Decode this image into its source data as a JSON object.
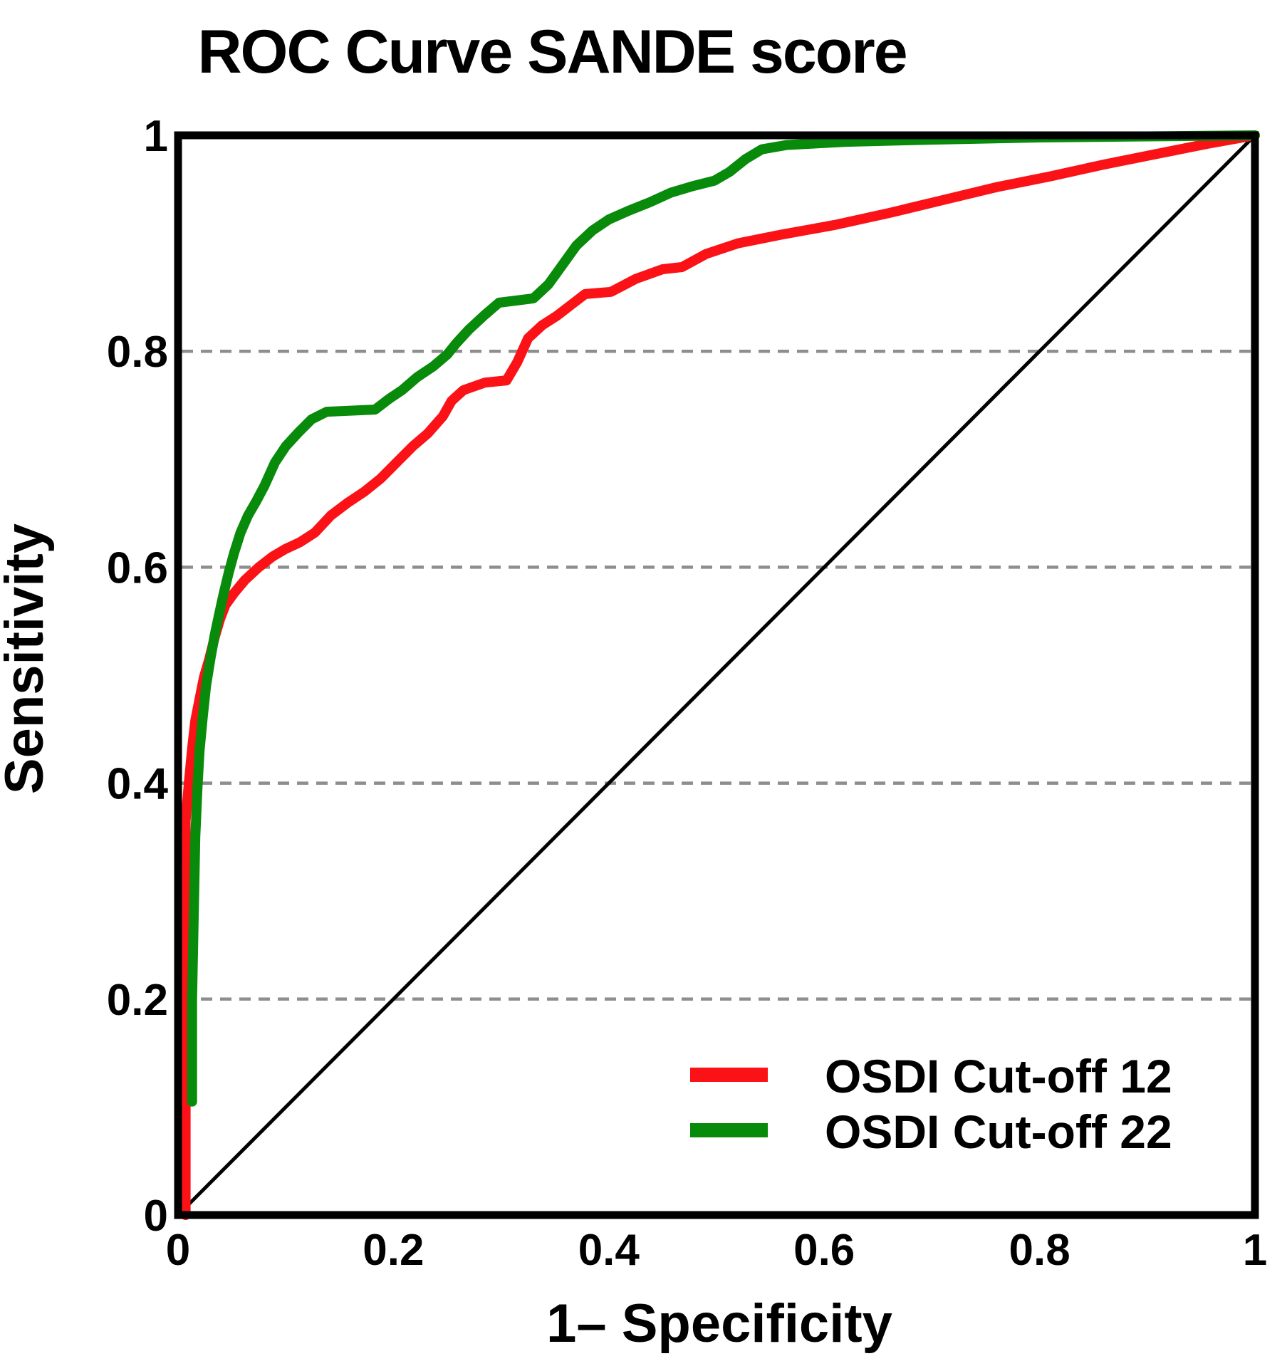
{
  "chart_data": {
    "type": "line",
    "title": "ROC Curve SANDE score",
    "xlabel": "1– Specificity",
    "ylabel": "Sensitivity",
    "xlim": [
      0,
      1
    ],
    "ylim": [
      0,
      1
    ],
    "grid": "horizontal-dashed",
    "grid_color": "#8e8e8e",
    "frame_color": "#000000",
    "diagonal_reference": true,
    "legend_position": "lower right",
    "x_ticks": [
      {
        "v": 0,
        "label": "0"
      },
      {
        "v": 0.2,
        "label": "0.2"
      },
      {
        "v": 0.4,
        "label": "0.4"
      },
      {
        "v": 0.6,
        "label": "0.6"
      },
      {
        "v": 0.8,
        "label": "0.8"
      },
      {
        "v": 1,
        "label": "1"
      }
    ],
    "y_ticks": [
      {
        "v": 0,
        "label": "0"
      },
      {
        "v": 0.2,
        "label": "0.2"
      },
      {
        "v": 0.4,
        "label": "0.4"
      },
      {
        "v": 0.6,
        "label": "0.6"
      },
      {
        "v": 0.8,
        "label": "0.8"
      },
      {
        "v": 1,
        "label": "1"
      }
    ],
    "y_gridlines": [
      0.2,
      0.4,
      0.6,
      0.8
    ],
    "series": [
      {
        "name": "OSDI Cut-off 12",
        "color": "#fb1217",
        "points": [
          [
            0.007,
            0.0
          ],
          [
            0.007,
            0.365
          ],
          [
            0.01,
            0.4
          ],
          [
            0.013,
            0.432
          ],
          [
            0.016,
            0.458
          ],
          [
            0.02,
            0.478
          ],
          [
            0.024,
            0.498
          ],
          [
            0.029,
            0.515
          ],
          [
            0.034,
            0.535
          ],
          [
            0.039,
            0.552
          ],
          [
            0.044,
            0.565
          ],
          [
            0.052,
            0.576
          ],
          [
            0.062,
            0.588
          ],
          [
            0.075,
            0.6
          ],
          [
            0.088,
            0.61
          ],
          [
            0.1,
            0.617
          ],
          [
            0.113,
            0.623
          ],
          [
            0.127,
            0.632
          ],
          [
            0.142,
            0.648
          ],
          [
            0.158,
            0.66
          ],
          [
            0.173,
            0.67
          ],
          [
            0.188,
            0.682
          ],
          [
            0.203,
            0.697
          ],
          [
            0.218,
            0.712
          ],
          [
            0.232,
            0.724
          ],
          [
            0.246,
            0.74
          ],
          [
            0.254,
            0.754
          ],
          [
            0.265,
            0.764
          ],
          [
            0.285,
            0.771
          ],
          [
            0.305,
            0.773
          ],
          [
            0.315,
            0.79
          ],
          [
            0.325,
            0.812
          ],
          [
            0.338,
            0.824
          ],
          [
            0.352,
            0.833
          ],
          [
            0.365,
            0.843
          ],
          [
            0.378,
            0.853
          ],
          [
            0.402,
            0.855
          ],
          [
            0.425,
            0.867
          ],
          [
            0.45,
            0.876
          ],
          [
            0.468,
            0.878
          ],
          [
            0.49,
            0.89
          ],
          [
            0.52,
            0.9
          ],
          [
            0.56,
            0.908
          ],
          [
            0.61,
            0.917
          ],
          [
            0.66,
            0.928
          ],
          [
            0.71,
            0.94
          ],
          [
            0.76,
            0.952
          ],
          [
            0.81,
            0.962
          ],
          [
            0.86,
            0.973
          ],
          [
            0.91,
            0.983
          ],
          [
            0.955,
            0.992
          ],
          [
            1.0,
            1.0
          ]
        ]
      },
      {
        "name": "OSDI Cut-off 22",
        "color": "#088a0b",
        "points": [
          [
            0.013,
            0.105
          ],
          [
            0.013,
            0.2
          ],
          [
            0.014,
            0.25
          ],
          [
            0.015,
            0.3
          ],
          [
            0.016,
            0.35
          ],
          [
            0.018,
            0.395
          ],
          [
            0.02,
            0.43
          ],
          [
            0.023,
            0.462
          ],
          [
            0.026,
            0.49
          ],
          [
            0.03,
            0.515
          ],
          [
            0.034,
            0.537
          ],
          [
            0.038,
            0.556
          ],
          [
            0.042,
            0.574
          ],
          [
            0.047,
            0.595
          ],
          [
            0.052,
            0.613
          ],
          [
            0.058,
            0.632
          ],
          [
            0.065,
            0.648
          ],
          [
            0.072,
            0.66
          ],
          [
            0.08,
            0.675
          ],
          [
            0.09,
            0.697
          ],
          [
            0.1,
            0.712
          ],
          [
            0.112,
            0.725
          ],
          [
            0.124,
            0.737
          ],
          [
            0.138,
            0.744
          ],
          [
            0.183,
            0.746
          ],
          [
            0.196,
            0.756
          ],
          [
            0.208,
            0.764
          ],
          [
            0.222,
            0.776
          ],
          [
            0.237,
            0.786
          ],
          [
            0.25,
            0.797
          ],
          [
            0.258,
            0.807
          ],
          [
            0.27,
            0.82
          ],
          [
            0.284,
            0.833
          ],
          [
            0.298,
            0.845
          ],
          [
            0.33,
            0.849
          ],
          [
            0.344,
            0.862
          ],
          [
            0.357,
            0.88
          ],
          [
            0.37,
            0.898
          ],
          [
            0.385,
            0.912
          ],
          [
            0.4,
            0.922
          ],
          [
            0.418,
            0.93
          ],
          [
            0.438,
            0.938
          ],
          [
            0.458,
            0.947
          ],
          [
            0.478,
            0.953
          ],
          [
            0.498,
            0.958
          ],
          [
            0.512,
            0.966
          ],
          [
            0.527,
            0.978
          ],
          [
            0.542,
            0.987
          ],
          [
            0.565,
            0.991
          ],
          [
            0.62,
            0.994
          ],
          [
            0.7,
            0.996
          ],
          [
            0.8,
            0.998
          ],
          [
            0.9,
            0.999
          ],
          [
            1.0,
            1.0
          ]
        ]
      }
    ]
  }
}
